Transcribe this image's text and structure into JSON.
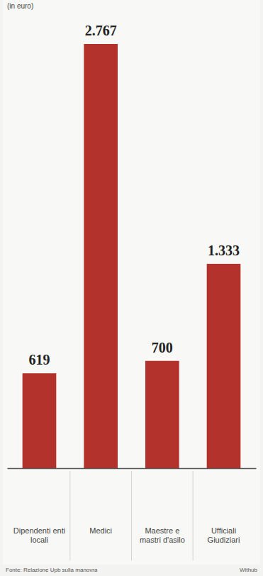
{
  "chart_data": {
    "type": "bar",
    "subtitle": "(in euro)",
    "categories": [
      "Dipendenti enti locali",
      "Medici",
      "Maestre e mastri d'asilo",
      "Ufficiali Giudiziari"
    ],
    "values": [
      619,
      2767,
      700,
      1333
    ],
    "value_labels": [
      "619",
      "2.767",
      "700",
      "1.333"
    ],
    "color": "#b3322b",
    "data_labels": true,
    "tick_labels": "x",
    "grid": false,
    "source": "Fonte: Relazione Upb sulla manovra",
    "credit": "Withub"
  }
}
